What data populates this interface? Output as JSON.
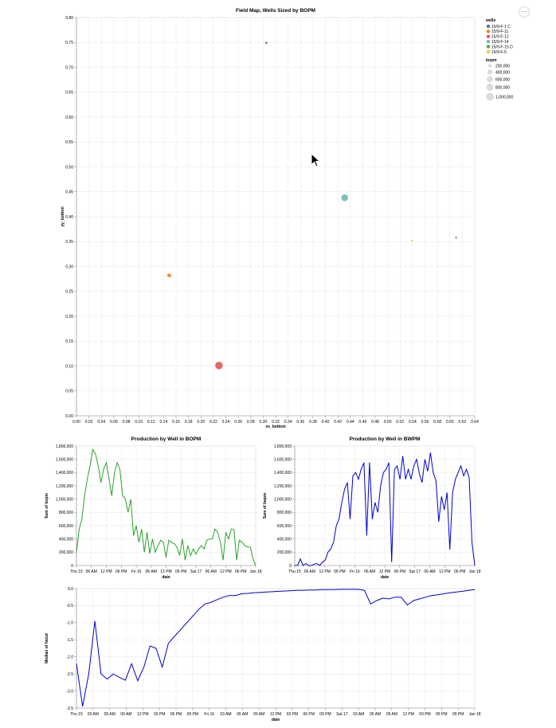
{
  "menu": {
    "label": "⋯"
  },
  "chart_data": [
    {
      "type": "scatter",
      "title": "Field Map, Wells Sized by BOPM",
      "xlabel": "xx_bottom",
      "ylabel": "yy_bottom",
      "xlim": [
        0.0,
        0.64
      ],
      "ylim": [
        0.0,
        0.8
      ],
      "x_ticks": [
        "0.00",
        "0.02",
        "0.04",
        "0.06",
        "0.08",
        "0.10",
        "0.12",
        "0.14",
        "0.16",
        "0.18",
        "0.20",
        "0.22",
        "0.24",
        "0.26",
        "0.28",
        "0.30",
        "0.32",
        "0.34",
        "0.36",
        "0.38",
        "0.40",
        "0.42",
        "0.44",
        "0.46",
        "0.48",
        "0.50",
        "0.52",
        "0.54",
        "0.56",
        "0.58",
        "0.60",
        "0.62",
        "0.64"
      ],
      "y_ticks": [
        "0.00",
        "0.05",
        "0.10",
        "0.15",
        "0.20",
        "0.25",
        "0.30",
        "0.35",
        "0.40",
        "0.45",
        "0.50",
        "0.55",
        "0.60",
        "0.65",
        "0.70",
        "0.75",
        "0.80"
      ],
      "grid": true,
      "legend": {
        "position": "top-right",
        "color_title": "wells",
        "wells": [
          {
            "name": "15/9-F-1 C",
            "color": "#4c78a8"
          },
          {
            "name": "15/9-F-11",
            "color": "#f58518"
          },
          {
            "name": "15/9-F-12",
            "color": "#e45756"
          },
          {
            "name": "15/9-F-14",
            "color": "#72b7b2"
          },
          {
            "name": "15/9-F-15 D",
            "color": "#54a24b"
          },
          {
            "name": "15/9-F-5",
            "color": "#eeca3b"
          }
        ],
        "size_title": "bopm",
        "sizes": [
          {
            "label": "200,000",
            "value": 200000
          },
          {
            "label": "400,000",
            "value": 400000
          },
          {
            "label": "600,000",
            "value": 600000
          },
          {
            "label": "800,000",
            "value": 800000
          },
          {
            "label": "1,000,000",
            "value": 1000000
          }
        ]
      },
      "points": [
        {
          "well": "15/9-F-1 C",
          "x": 0.305,
          "y": 0.749,
          "bopm": 80000
        },
        {
          "well": "15/9-F-11",
          "x": 0.149,
          "y": 0.282,
          "bopm": 250000
        },
        {
          "well": "15/9-F-12",
          "x": 0.229,
          "y": 0.101,
          "bopm": 900000
        },
        {
          "well": "15/9-F-14",
          "x": 0.431,
          "y": 0.438,
          "bopm": 750000
        },
        {
          "well": "15/9-F-15 D",
          "x": 0.61,
          "y": 0.358,
          "bopm": 30000
        },
        {
          "well": "15/9-F-5",
          "x": 0.539,
          "y": 0.352,
          "bopm": 25000
        }
      ]
    },
    {
      "type": "line",
      "title": "Production by Well in BOPM",
      "xlabel": "date",
      "ylabel": "Sum of bopm",
      "ylim": [
        0,
        1800000
      ],
      "y_ticks": [
        "0",
        "200,000",
        "400,000",
        "600,000",
        "800,000",
        "1,000,000",
        "1,200,000",
        "1,400,000",
        "1,600,000",
        "1,800,000"
      ],
      "x_ticks": [
        "Thu 15",
        "06 AM",
        "12 PM",
        "06 PM",
        "Fri 16",
        "06 AM",
        "12 PM",
        "06 PM",
        "Sat 17",
        "06 AM",
        "12 PM",
        "06 PM",
        "Jan 18"
      ],
      "color": "#2ca02c",
      "values": [
        200000,
        550000,
        700000,
        1050000,
        1300000,
        1500000,
        1750000,
        1680000,
        1500000,
        1250000,
        1450000,
        1550000,
        1300000,
        1050000,
        1400000,
        1550000,
        1450000,
        1050000,
        1000000,
        800000,
        1000000,
        450000,
        600000,
        350000,
        550000,
        200000,
        500000,
        180000,
        400000,
        200000,
        300000,
        380000,
        350000,
        120000,
        380000,
        350000,
        330000,
        280000,
        150000,
        400000,
        80000,
        300000,
        150000,
        250000,
        170000,
        250000,
        300000,
        250000,
        380000,
        400000,
        400000,
        550000,
        500000,
        350000,
        80000,
        500000,
        400000,
        550000,
        540000,
        80000,
        380000,
        350000,
        300000,
        280000,
        280000,
        100000,
        0
      ]
    },
    {
      "type": "line",
      "title": "Production by Well in BWPM",
      "xlabel": "date",
      "ylabel": "Sum of bwpm",
      "ylim": [
        0,
        1800000
      ],
      "y_ticks": [
        "0",
        "200,000",
        "400,000",
        "600,000",
        "800,000",
        "1,000,000",
        "1,200,000",
        "1,400,000",
        "1,600,000",
        "1,800,000"
      ],
      "x_ticks": [
        "Thu 15",
        "06 AM",
        "12 PM",
        "06 PM",
        "Fri 16",
        "06 AM",
        "12 PM",
        "06 PM",
        "Sat 17",
        "06 AM",
        "12 PM",
        "06 PM",
        "Jan 18"
      ],
      "color": "#0000cc",
      "values": [
        0,
        0,
        100000,
        0,
        30000,
        0,
        0,
        20000,
        30000,
        0,
        50000,
        80000,
        200000,
        250000,
        350000,
        600000,
        700000,
        950000,
        1150000,
        1250000,
        700000,
        1350000,
        1400000,
        1300000,
        1450000,
        1550000,
        450000,
        1550000,
        700000,
        950000,
        800000,
        1200000,
        1400000,
        1450000,
        1550000,
        50000,
        1450000,
        1500000,
        1300000,
        1650000,
        1300000,
        1450000,
        1300000,
        1500000,
        1600000,
        1380000,
        1250000,
        1600000,
        1420000,
        1700000,
        1400000,
        1280000,
        660000,
        1040000,
        840000,
        1100000,
        240000,
        1100000,
        1300000,
        1400000,
        1500000,
        1350000,
        1450000,
        1320000,
        350000,
        0
      ]
    },
    {
      "type": "line",
      "title": "",
      "xlabel": "date",
      "ylabel": "Median of fwcut",
      "ylim": [
        -3.5,
        0.0
      ],
      "y_ticks": [
        "-3.5",
        "-3.0",
        "-2.5",
        "-2.0",
        "-1.5",
        "-1.0",
        "-0.5",
        "0.0"
      ],
      "x_ticks": [
        "Thu 15",
        "03 AM",
        "06 AM",
        "09 AM",
        "12 PM",
        "03 PM",
        "06 PM",
        "09 PM",
        "Fri 16",
        "03 AM",
        "06 AM",
        "09 AM",
        "12 PM",
        "03 PM",
        "06 PM",
        "09 PM",
        "Sat 17",
        "03 AM",
        "06 AM",
        "09 AM",
        "12 PM",
        "03 PM",
        "06 PM",
        "09 PM",
        "Jan 18"
      ],
      "color": "#0000cc",
      "values": [
        -2.2,
        -3.45,
        -2.5,
        -0.95,
        -2.5,
        -2.65,
        -2.5,
        -2.6,
        -2.68,
        -2.2,
        -2.7,
        -2.3,
        -1.68,
        -1.75,
        -2.3,
        -1.6,
        -1.4,
        -1.2,
        -1.0,
        -0.8,
        -0.6,
        -0.45,
        -0.4,
        -0.32,
        -0.25,
        -0.2,
        -0.2,
        -0.15,
        -0.14,
        -0.12,
        -0.11,
        -0.1,
        -0.09,
        -0.08,
        -0.07,
        -0.06,
        -0.05,
        -0.05,
        -0.04,
        -0.04,
        -0.03,
        -0.03,
        -0.03,
        -0.02,
        -0.02,
        -0.02,
        -0.02,
        -0.05,
        -0.45,
        -0.35,
        -0.28,
        -0.3,
        -0.25,
        -0.25,
        -0.48,
        -0.35,
        -0.3,
        -0.25,
        -0.2,
        -0.18,
        -0.15,
        -0.12,
        -0.1,
        -0.08,
        -0.05,
        -0.03
      ]
    }
  ]
}
